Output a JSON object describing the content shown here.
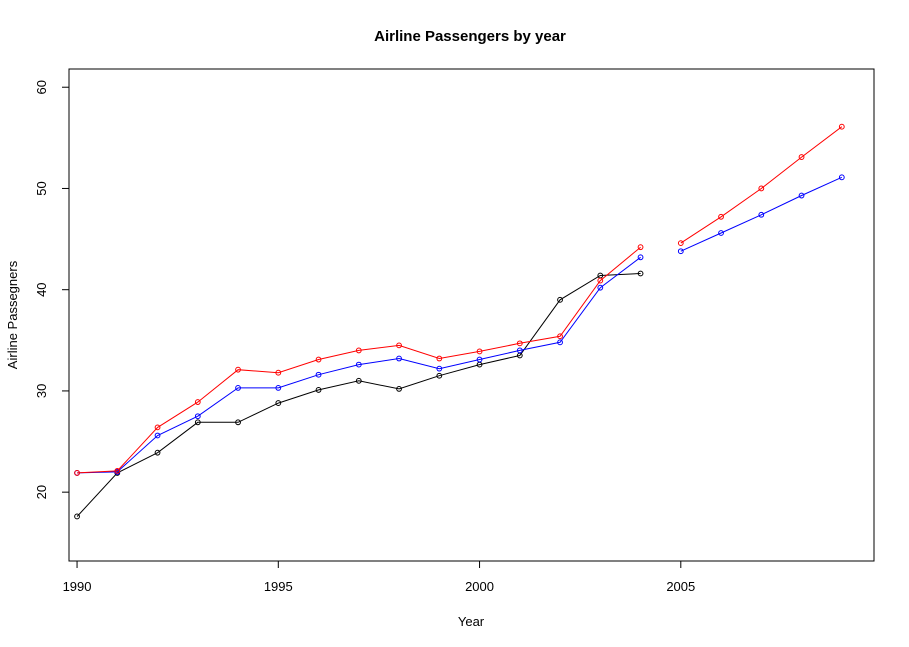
{
  "chart_data": {
    "type": "line",
    "title": "Airline Passengers by year",
    "xlabel": "Year",
    "ylabel": "Airline Passegners",
    "xlim": [
      1989.8,
      2009.8
    ],
    "ylim": [
      13.2,
      61.8
    ],
    "xticks": [
      1990,
      1995,
      2000,
      2005
    ],
    "yticks": [
      20,
      30,
      40,
      50,
      60
    ],
    "grid": false,
    "legend": "none",
    "series": [
      {
        "color": "#000000",
        "points": [
          [
            1990,
            17.6
          ],
          [
            1991,
            21.9
          ],
          [
            1992,
            23.9
          ],
          [
            1993,
            26.9
          ],
          [
            1994,
            26.9
          ],
          [
            1995,
            28.8
          ],
          [
            1996,
            30.1
          ],
          [
            1997,
            31.0
          ],
          [
            1998,
            30.2
          ],
          [
            1999,
            31.5
          ],
          [
            2000,
            32.6
          ],
          [
            2001,
            33.5
          ],
          [
            2002,
            39.0
          ],
          [
            2003,
            41.4
          ],
          [
            2004,
            41.6
          ]
        ]
      },
      {
        "color": "#0000ff",
        "points": [
          [
            1990,
            21.9
          ],
          [
            1991,
            22.0
          ],
          [
            1992,
            25.6
          ],
          [
            1993,
            27.5
          ],
          [
            1994,
            30.3
          ],
          [
            1995,
            30.3
          ],
          [
            1996,
            31.6
          ],
          [
            1997,
            32.6
          ],
          [
            1998,
            33.2
          ],
          [
            1999,
            32.2
          ],
          [
            2000,
            33.1
          ],
          [
            2001,
            34.0
          ],
          [
            2002,
            34.8
          ],
          [
            2003,
            40.2
          ],
          [
            2004,
            43.2
          ],
          null,
          [
            2005,
            43.8
          ],
          [
            2006,
            45.6
          ],
          [
            2007,
            47.4
          ],
          [
            2008,
            49.3
          ],
          [
            2009,
            51.1
          ]
        ]
      },
      {
        "color": "#ff0000",
        "points": [
          [
            1990,
            21.9
          ],
          [
            1991,
            22.1
          ],
          [
            1992,
            26.4
          ],
          [
            1993,
            28.9
          ],
          [
            1994,
            32.1
          ],
          [
            1995,
            31.8
          ],
          [
            1996,
            33.1
          ],
          [
            1997,
            34.0
          ],
          [
            1998,
            34.5
          ],
          [
            1999,
            33.2
          ],
          [
            2000,
            33.9
          ],
          [
            2001,
            34.7
          ],
          [
            2002,
            35.4
          ],
          [
            2003,
            40.9
          ],
          [
            2004,
            44.2
          ],
          null,
          [
            2005,
            44.6
          ],
          [
            2006,
            47.2
          ],
          [
            2007,
            50.0
          ],
          [
            2008,
            53.1
          ],
          [
            2009,
            56.1
          ]
        ]
      }
    ]
  }
}
